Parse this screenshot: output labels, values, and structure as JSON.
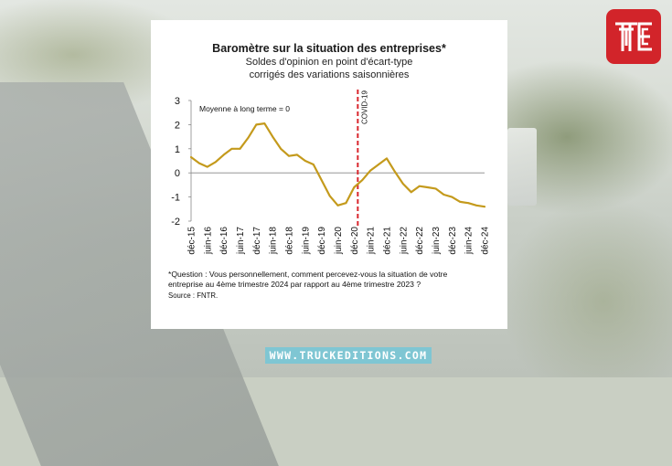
{
  "header": {
    "title": "Baromètre sur la situation des entreprises*",
    "subtitle_lines": [
      "Soldes d'opinion en point d'écart-type",
      "corrigés des variations saisonnières"
    ]
  },
  "footer": {
    "question_lines": [
      "*Question : Vous personnellement,  comment percevez-vous la situation de votre",
      "entreprise au 4ème trimestre 2024 par rapport au 4ème trimestre 2023 ?"
    ],
    "source": "Source : FNTR."
  },
  "branding": {
    "url": "WWW.TRUCKEDITIONS.COM",
    "logo_color": "#d2242a",
    "url_bg_color": "#7fc6d3"
  },
  "chart_data": {
    "type": "line",
    "title": "Baromètre sur la situation des entreprises*",
    "annotation": "Moyenne à long terme = 0",
    "marker": {
      "label": "COVID-19",
      "x": "déc-20",
      "color": "#d9272e",
      "style": "dashed"
    },
    "line_color": "#c49a1c",
    "ylim": [
      -2,
      3
    ],
    "yticks": [
      3,
      2,
      1,
      0,
      -1,
      -2
    ],
    "xticks": [
      "déc-15",
      "juin-16",
      "déc-16",
      "juin-17",
      "déc-17",
      "juin-18",
      "déc-18",
      "juin-19",
      "déc-19",
      "juin-20",
      "déc-20",
      "juin-21",
      "déc-21",
      "juin-22",
      "déc-22",
      "juin-23",
      "déc-23",
      "juin-24",
      "déc-24"
    ],
    "x": [
      "déc-15",
      "mars-16",
      "juin-16",
      "sept-16",
      "déc-16",
      "mars-17",
      "juin-17",
      "sept-17",
      "déc-17",
      "mars-18",
      "juin-18",
      "sept-18",
      "déc-18",
      "mars-19",
      "juin-19",
      "sept-19",
      "déc-19",
      "mars-20",
      "juin-20",
      "sept-20",
      "déc-20",
      "mars-21",
      "juin-21",
      "sept-21",
      "déc-21",
      "mars-22",
      "juin-22",
      "sept-22",
      "déc-22",
      "mars-23",
      "juin-23",
      "sept-23",
      "déc-23",
      "mars-24",
      "juin-24",
      "sept-24",
      "déc-24"
    ],
    "values": [
      0.65,
      0.4,
      0.25,
      0.45,
      0.75,
      1.0,
      1.0,
      1.45,
      2.0,
      2.05,
      1.5,
      1.0,
      0.7,
      0.75,
      0.5,
      0.35,
      -0.3,
      -0.95,
      -1.35,
      -1.25,
      -0.6,
      -0.3,
      0.1,
      0.35,
      0.6,
      0.05,
      -0.45,
      -0.8,
      -0.55,
      -0.6,
      -0.65,
      -0.9,
      -1.0,
      -1.2,
      -1.25,
      -1.35,
      -1.4
    ],
    "grid": false,
    "legend": "none"
  }
}
